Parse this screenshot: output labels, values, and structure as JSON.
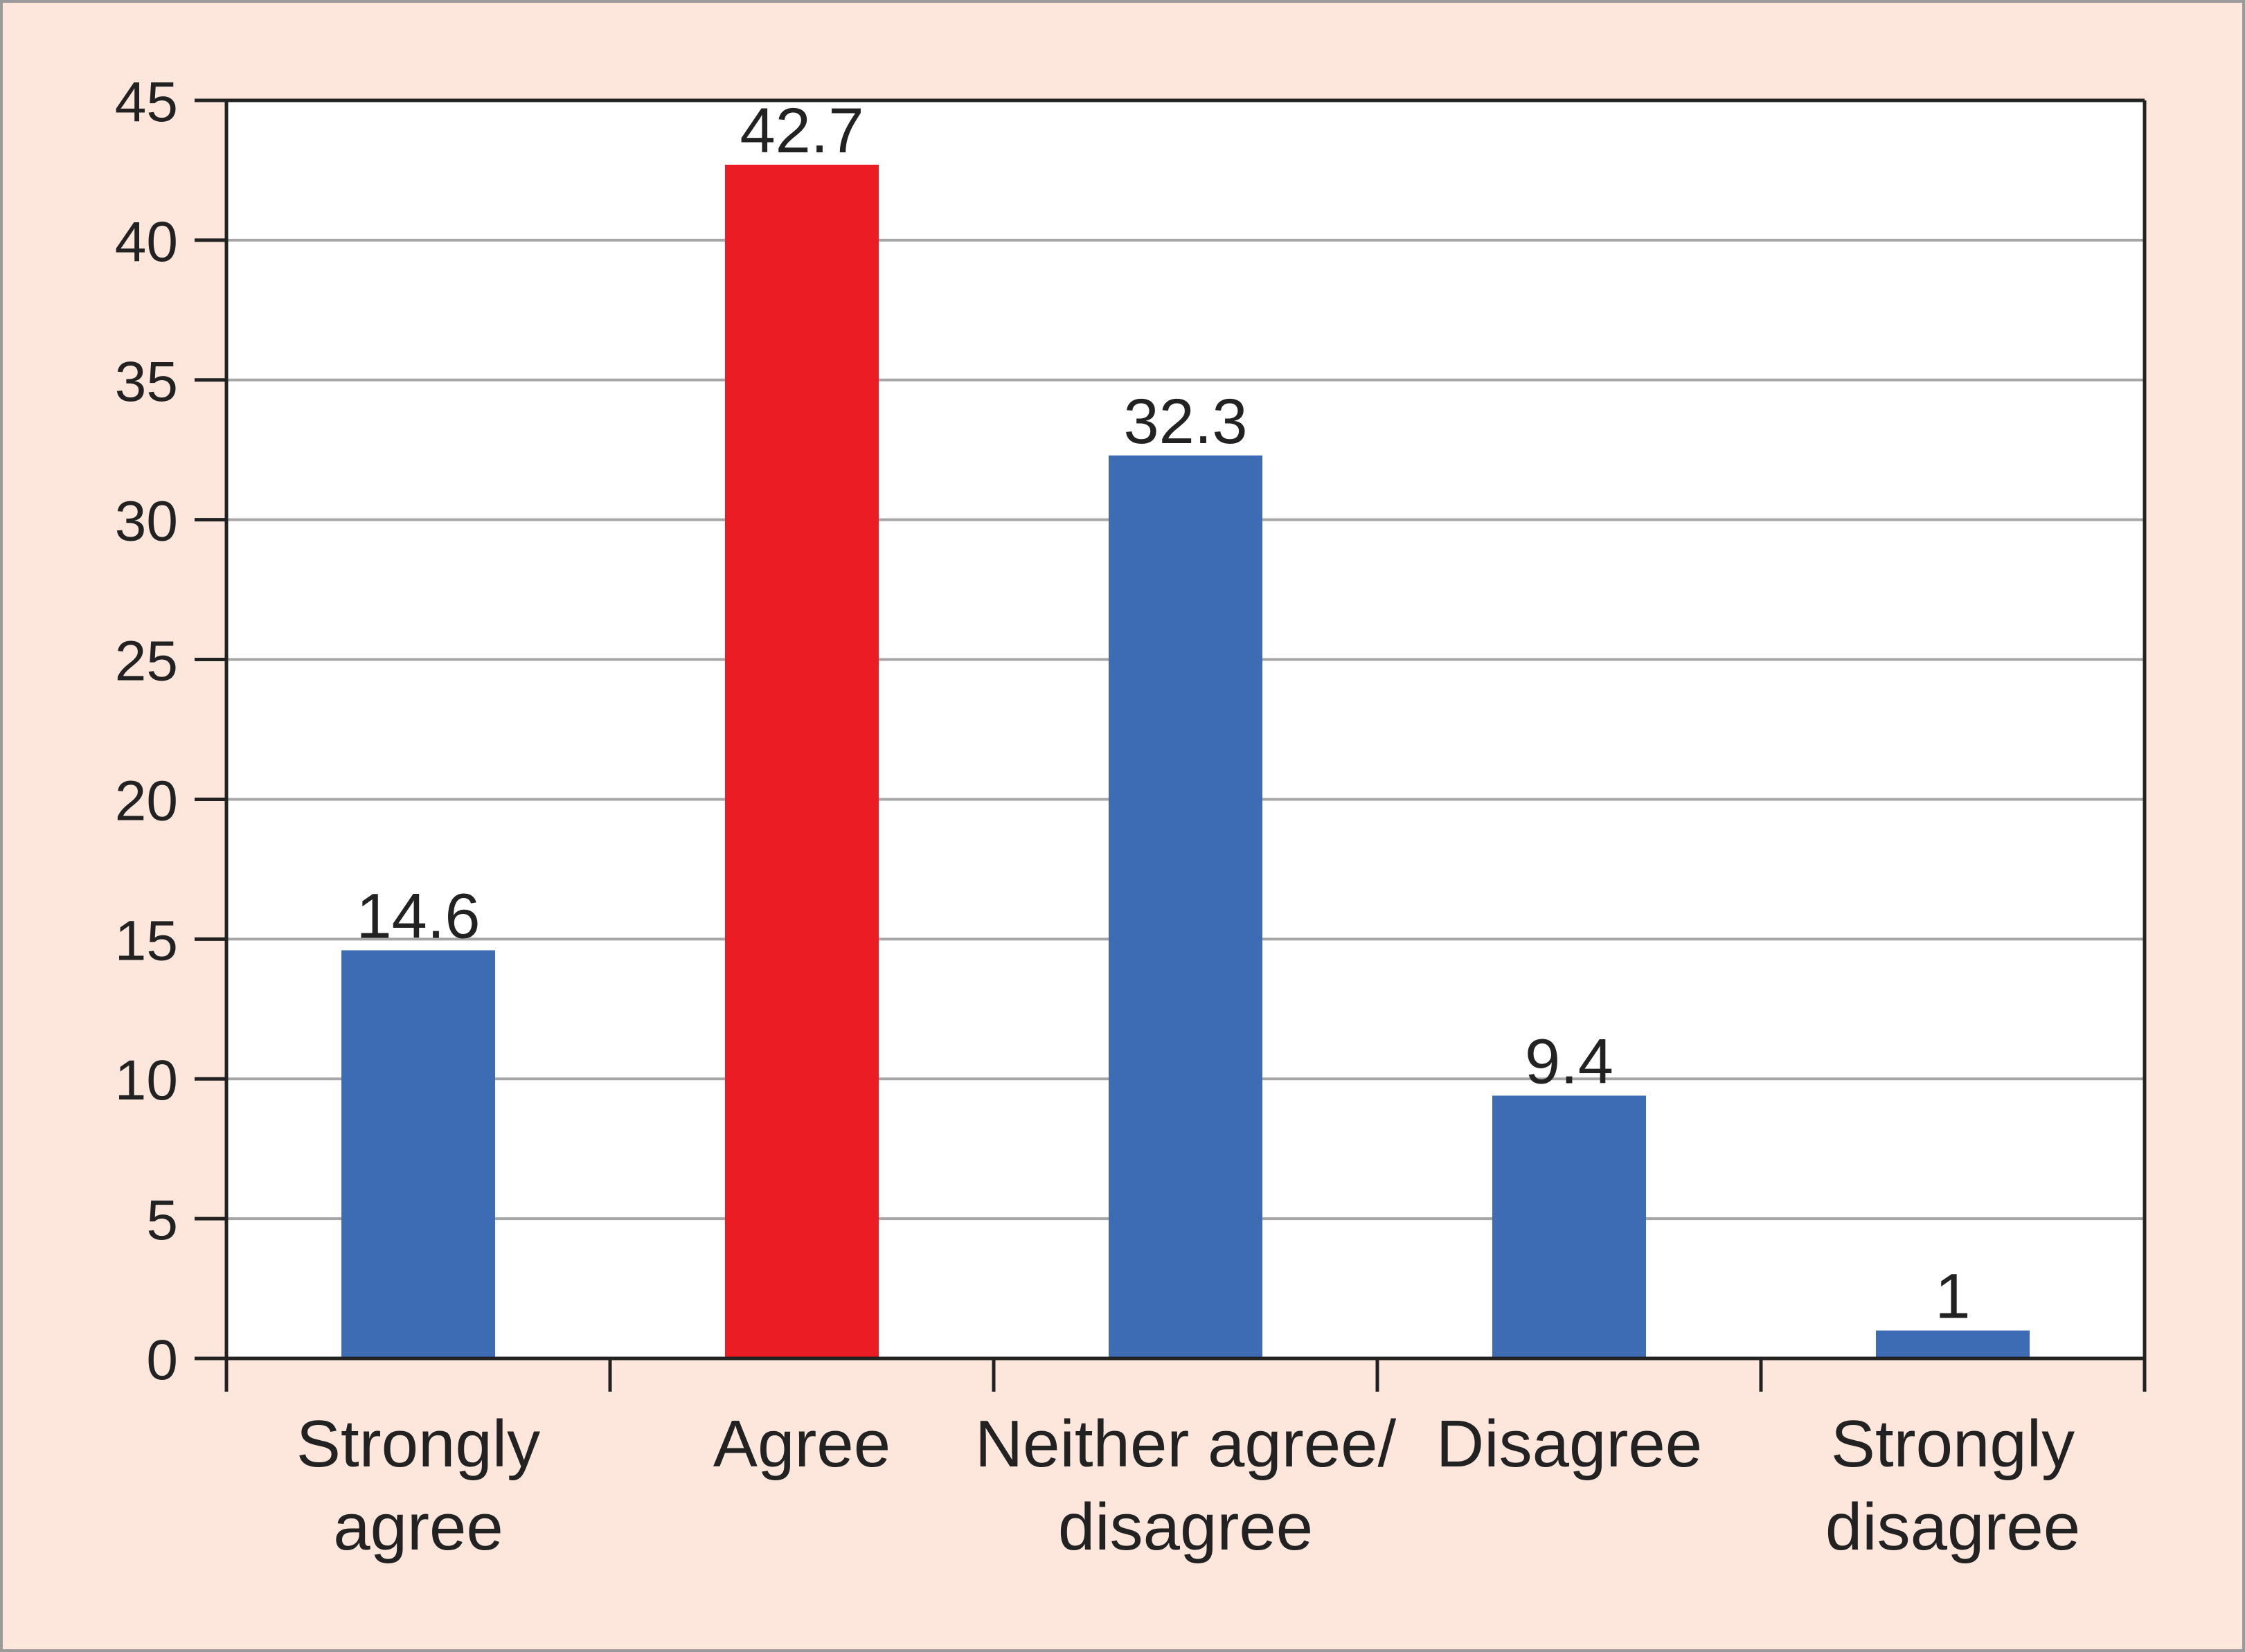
{
  "chart_data": {
    "type": "bar",
    "title": "",
    "xlabel": "",
    "ylabel": "",
    "ylim": [
      0,
      45
    ],
    "yticks": [
      0,
      5,
      10,
      15,
      20,
      25,
      30,
      35,
      40,
      45
    ],
    "grid": true,
    "legend": "none",
    "categories": [
      [
        "Strongly",
        "agree"
      ],
      [
        "Agree"
      ],
      [
        "Neither agree/",
        "disagree"
      ],
      [
        "Disagree"
      ],
      [
        "Strongly",
        "disagree"
      ]
    ],
    "values": [
      14.6,
      42.7,
      32.3,
      9.4,
      1
    ],
    "data_labels": [
      "14.6",
      "42.7",
      "32.3",
      "9.4",
      "1"
    ],
    "colors": [
      "#3d6bb4",
      "#ec1c24",
      "#3d6bb4",
      "#3d6bb4",
      "#3d6bb4"
    ]
  }
}
